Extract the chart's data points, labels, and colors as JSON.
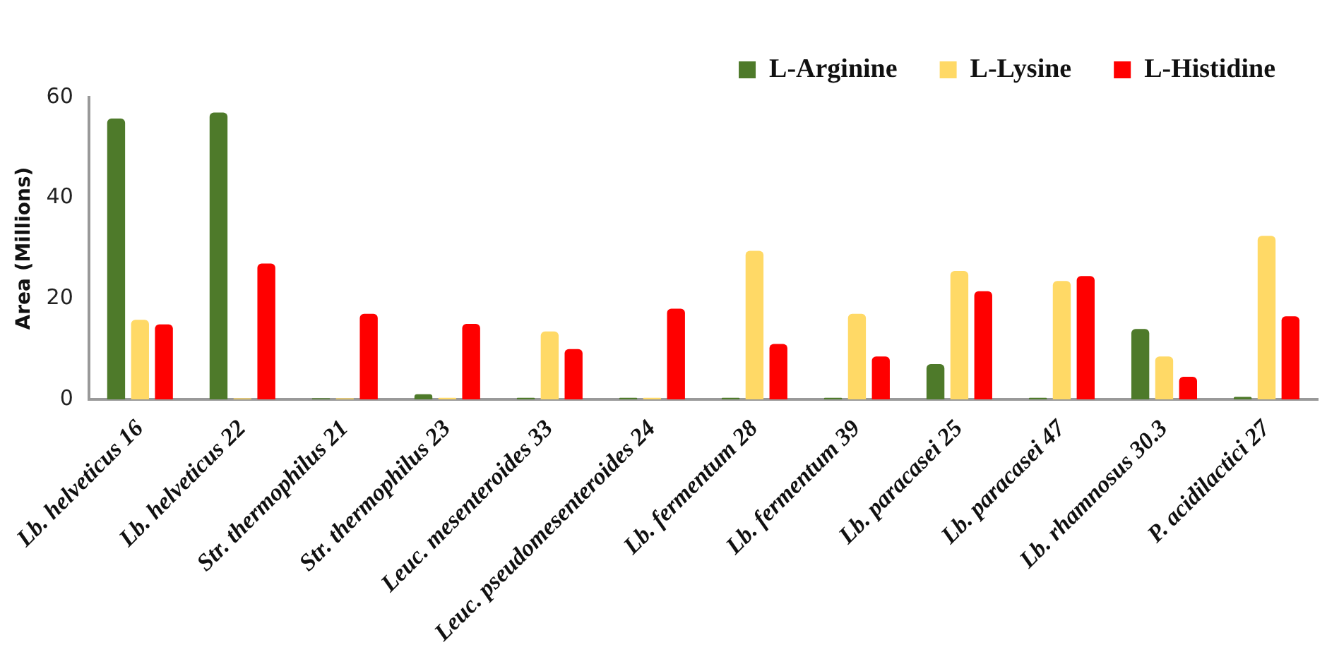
{
  "chart_data": {
    "type": "bar",
    "ylabel": "Area (Millions)",
    "categories": [
      "Lb. helveticus 16",
      "Lb. helveticus 22",
      "Str. thermophilus 21",
      "Str. thermophilus 23",
      "Leuc. mesenteroides 33",
      "Leuc. pseudomesenteroides 24",
      "Lb. fermentum 28",
      "Lb. fermentum 39",
      "Lb. paracasei 25",
      "Lb. paracasei 47",
      "Lb. rhamnosus 30.3",
      "P. acidilactici 27"
    ],
    "series": [
      {
        "name": "L-Arginine",
        "color": "#4e7a2a",
        "values": [
          55.8,
          57,
          0.2,
          1,
          0.3,
          0.3,
          0.3,
          0.3,
          7,
          0.3,
          14,
          0.5
        ]
      },
      {
        "name": "L-Lysine",
        "color": "#ffd966",
        "values": [
          15.8,
          0.2,
          0.2,
          0.3,
          13.5,
          0.3,
          29.5,
          17,
          25.5,
          23.5,
          8.5,
          32.5
        ]
      },
      {
        "name": "L-Histidine",
        "color": "#ff0000",
        "values": [
          14.9,
          27,
          17,
          15,
          10,
          18,
          11,
          8.5,
          21.5,
          24.5,
          4.5,
          16.5
        ]
      }
    ],
    "ylim": [
      0,
      60
    ],
    "yticks": [
      0,
      20,
      40,
      60
    ],
    "grid": false,
    "legend": "top right"
  }
}
